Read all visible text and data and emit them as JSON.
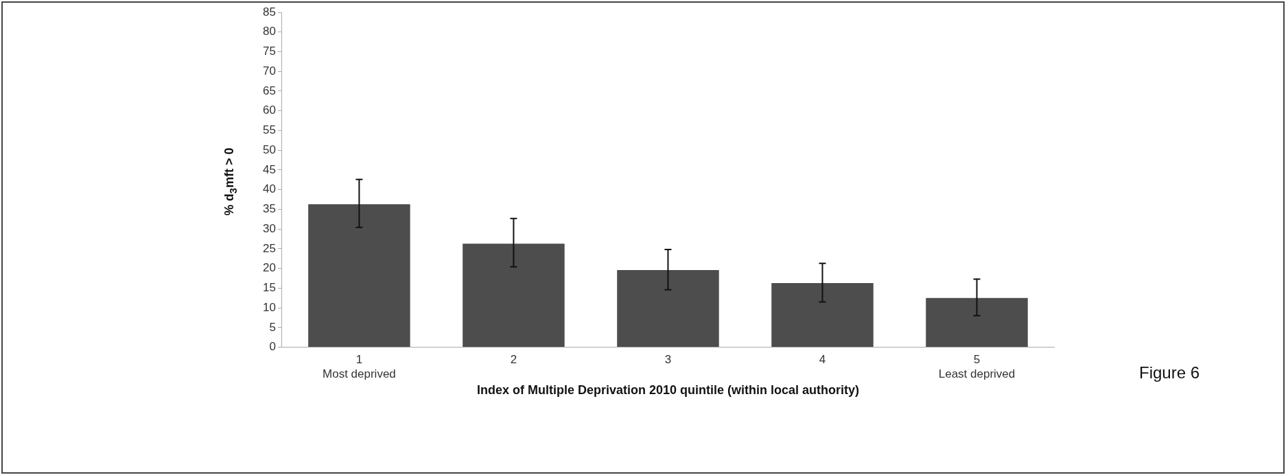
{
  "chart_data": {
    "type": "bar",
    "categories": [
      "1\nMost deprived",
      "2",
      "3",
      "4",
      "5\nLeast deprived"
    ],
    "values": [
      36.3,
      26.3,
      19.6,
      16.3,
      12.5
    ],
    "errors": [
      [
        30.4,
        42.6
      ],
      [
        20.4,
        32.7
      ],
      [
        14.6,
        24.8
      ],
      [
        11.5,
        21.3
      ],
      [
        8,
        17.3
      ]
    ],
    "color": "#4d4d4d",
    "xlabel": "Index of Multiple Deprivation 2010 quintile (within local authority)",
    "ylabel": "% d$_{3}$mft > 0",
    "ylim": [
      0,
      85
    ],
    "yticks": [
      0,
      5,
      10,
      15,
      20,
      25,
      30,
      35,
      40,
      45,
      50,
      55,
      60,
      65,
      70,
      75,
      80,
      85
    ],
    "grid": false,
    "legend": false,
    "annotations": [
      "Figure 6"
    ]
  }
}
